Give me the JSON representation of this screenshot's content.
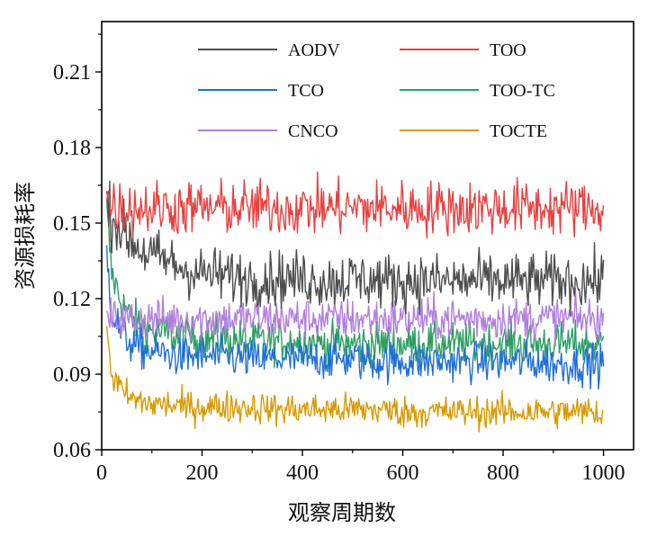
{
  "chart_data": {
    "type": "line",
    "title": "",
    "xlabel": "观察周期数",
    "ylabel": "资源损耗率",
    "xlim": [
      0,
      1060
    ],
    "ylim": [
      0.06,
      0.23
    ],
    "x_ticks": [
      0,
      200,
      400,
      600,
      800,
      1000
    ],
    "y_ticks": [
      0.06,
      0.09,
      0.12,
      0.15,
      0.18,
      0.21
    ],
    "x_tick_labels": [
      "0",
      "200",
      "400",
      "600",
      "800",
      "1000"
    ],
    "y_tick_labels": [
      "0.06",
      "0.09",
      "0.12",
      "0.15",
      "0.18",
      "0.21"
    ],
    "grid": false,
    "legend_position": "top",
    "series": [
      {
        "name": "AODV",
        "color": "#4d4d4d",
        "x": [
          10,
          20,
          40,
          60,
          80,
          100,
          130,
          160,
          200,
          250,
          300,
          350,
          400,
          450,
          500,
          550,
          600,
          650,
          700,
          750,
          800,
          850,
          900,
          950,
          1000
        ],
        "values": [
          0.158,
          0.152,
          0.147,
          0.143,
          0.139,
          0.137,
          0.135,
          0.132,
          0.13,
          0.129,
          0.128,
          0.128,
          0.128,
          0.127,
          0.128,
          0.127,
          0.127,
          0.127,
          0.127,
          0.127,
          0.127,
          0.127,
          0.127,
          0.127,
          0.127
        ]
      },
      {
        "name": "TOO",
        "color": "#e84040",
        "x": [
          10,
          20,
          40,
          60,
          80,
          100,
          130,
          160,
          200,
          250,
          300,
          350,
          400,
          450,
          500,
          550,
          600,
          650,
          700,
          750,
          800,
          850,
          900,
          950,
          1000
        ],
        "values": [
          0.16,
          0.157,
          0.156,
          0.156,
          0.156,
          0.156,
          0.156,
          0.156,
          0.156,
          0.156,
          0.156,
          0.156,
          0.156,
          0.156,
          0.156,
          0.156,
          0.156,
          0.156,
          0.156,
          0.156,
          0.156,
          0.156,
          0.156,
          0.156,
          0.156
        ]
      },
      {
        "name": "TCO",
        "color": "#1f6fd6",
        "x": [
          10,
          20,
          40,
          60,
          80,
          100,
          130,
          160,
          200,
          250,
          300,
          350,
          400,
          450,
          500,
          550,
          600,
          650,
          700,
          750,
          800,
          850,
          900,
          950,
          1000
        ],
        "values": [
          0.14,
          0.115,
          0.106,
          0.102,
          0.1,
          0.099,
          0.098,
          0.097,
          0.097,
          0.097,
          0.096,
          0.096,
          0.096,
          0.096,
          0.096,
          0.095,
          0.095,
          0.095,
          0.095,
          0.095,
          0.095,
          0.095,
          0.094,
          0.094,
          0.094
        ]
      },
      {
        "name": "TOO-TC",
        "color": "#2e9e64",
        "x": [
          10,
          20,
          40,
          60,
          80,
          100,
          130,
          160,
          200,
          250,
          300,
          350,
          400,
          450,
          500,
          550,
          600,
          650,
          700,
          750,
          800,
          850,
          900,
          950,
          1000
        ],
        "values": [
          0.155,
          0.13,
          0.118,
          0.112,
          0.109,
          0.107,
          0.106,
          0.105,
          0.104,
          0.104,
          0.103,
          0.103,
          0.103,
          0.102,
          0.102,
          0.102,
          0.102,
          0.102,
          0.102,
          0.102,
          0.102,
          0.102,
          0.102,
          0.102,
          0.102
        ]
      },
      {
        "name": "CNCO",
        "color": "#b07ee0",
        "x": [
          10,
          20,
          40,
          60,
          80,
          100,
          130,
          160,
          200,
          250,
          300,
          350,
          400,
          450,
          500,
          550,
          600,
          650,
          700,
          750,
          800,
          850,
          900,
          950,
          1000
        ],
        "values": [
          0.112,
          0.112,
          0.112,
          0.112,
          0.112,
          0.112,
          0.112,
          0.112,
          0.112,
          0.112,
          0.112,
          0.112,
          0.112,
          0.112,
          0.112,
          0.112,
          0.112,
          0.112,
          0.112,
          0.112,
          0.112,
          0.112,
          0.112,
          0.112,
          0.112
        ]
      },
      {
        "name": "TOCTE",
        "color": "#d89a00",
        "x": [
          10,
          20,
          40,
          60,
          80,
          100,
          130,
          160,
          200,
          250,
          300,
          350,
          400,
          450,
          500,
          550,
          600,
          650,
          700,
          750,
          800,
          850,
          900,
          950,
          1000
        ],
        "values": [
          0.11,
          0.09,
          0.083,
          0.08,
          0.079,
          0.078,
          0.078,
          0.077,
          0.077,
          0.077,
          0.077,
          0.076,
          0.076,
          0.076,
          0.076,
          0.076,
          0.075,
          0.075,
          0.075,
          0.075,
          0.075,
          0.075,
          0.075,
          0.075,
          0.075
        ]
      }
    ]
  }
}
